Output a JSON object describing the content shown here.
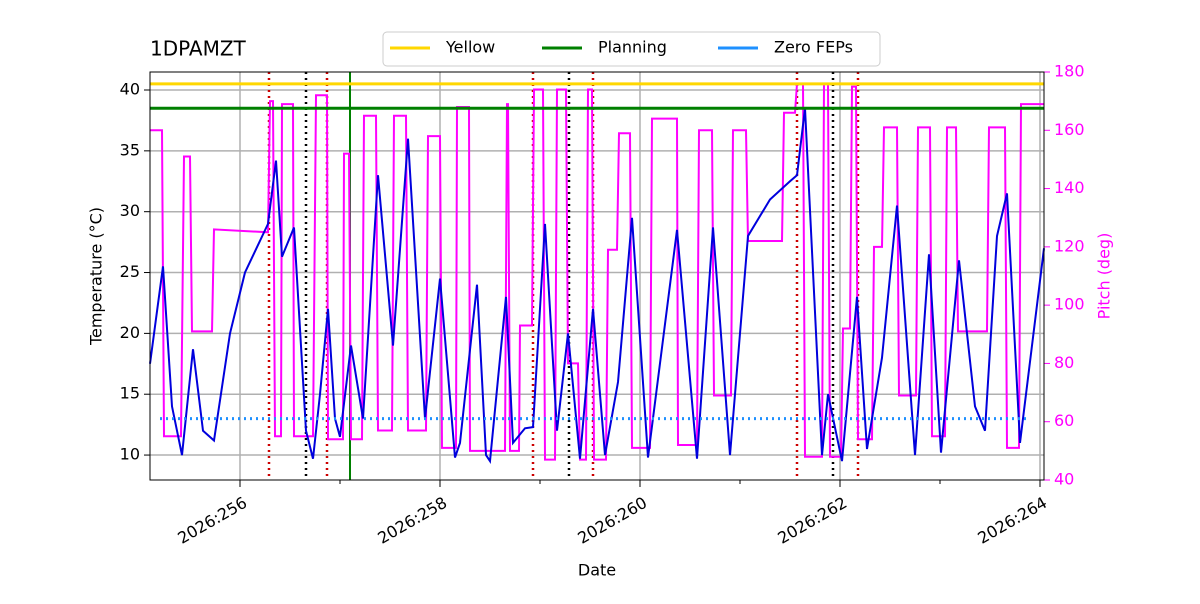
{
  "chart_data": {
    "type": "line",
    "title": "1DPAMZT",
    "xlabel": "Date",
    "ylabel": "Temperature (°C)",
    "y2label": "Pitch (deg)",
    "xlim": [
      255.1,
      264.04
    ],
    "xticks": [
      {
        "value": 256,
        "label": "2026:256"
      },
      {
        "value": 258,
        "label": "2026:258"
      },
      {
        "value": 260,
        "label": "2026:260"
      },
      {
        "value": 262,
        "label": "2026:262"
      },
      {
        "value": 264,
        "label": "2026:264"
      }
    ],
    "xminor": [
      257,
      259,
      261,
      263
    ],
    "ylim": [
      7.95,
      41.48
    ],
    "yticks": [
      10,
      15,
      20,
      25,
      30,
      35,
      40
    ],
    "y2lim": [
      40,
      180
    ],
    "y2ticks": [
      40,
      60,
      80,
      100,
      120,
      140,
      160,
      180
    ],
    "y2color": "#ff00ff",
    "grid": true,
    "legend": "top",
    "temperature": {
      "color": "#0000dd",
      "x": [
        255.1,
        255.23,
        255.32,
        255.42,
        255.53,
        255.63,
        255.74,
        255.9,
        256.05,
        256.28,
        256.36,
        256.42,
        256.54,
        256.66,
        256.73,
        256.8,
        256.88,
        256.95,
        257.0,
        257.11,
        257.23,
        257.38,
        257.53,
        257.68,
        257.85,
        258.0,
        258.15,
        258.2,
        258.37,
        258.46,
        258.5,
        258.66,
        258.73,
        258.85,
        258.93,
        259.05,
        259.17,
        259.28,
        259.4,
        259.53,
        259.65,
        259.78,
        259.92,
        260.08,
        260.37,
        260.57,
        260.73,
        260.9,
        261.08,
        261.3,
        261.5,
        261.57,
        261.65,
        261.82,
        261.88,
        262.02,
        262.17,
        262.27,
        262.42,
        262.57,
        262.75,
        262.89,
        263.01,
        263.19,
        263.35,
        263.45,
        263.57,
        263.67,
        263.8,
        264.04
      ],
      "values": [
        17.5,
        25.5,
        14,
        10,
        18.7,
        12,
        11.2,
        20,
        25,
        29,
        34.2,
        26.3,
        28.7,
        12,
        9.7,
        15,
        22,
        13,
        11.5,
        19,
        13,
        33,
        19,
        36,
        13,
        24.5,
        9.8,
        11,
        24,
        10,
        9.5,
        23,
        11,
        12.2,
        12.3,
        29,
        12,
        20,
        9.7,
        22,
        10,
        16,
        29.5,
        9.8,
        28.5,
        9.7,
        28.7,
        10,
        28,
        31,
        32.5,
        33,
        38.5,
        10,
        15,
        9.5,
        23,
        10.5,
        18,
        30.5,
        10,
        26.5,
        10.2,
        26,
        14,
        12,
        28,
        31.5,
        11,
        27
      ]
    },
    "pitch": {
      "color": "#ff00ff",
      "axis": "y2",
      "x": [
        255.1,
        255.22,
        255.24,
        255.41,
        255.44,
        255.5,
        255.52,
        255.72,
        255.74,
        256.28,
        256.3,
        256.33,
        256.35,
        256.41,
        256.42,
        256.53,
        256.54,
        256.73,
        256.76,
        256.87,
        256.88,
        257.03,
        257.04,
        257.09,
        257.11,
        257.22,
        257.24,
        257.36,
        257.38,
        257.52,
        257.54,
        257.66,
        257.68,
        257.86,
        257.88,
        258.0,
        258.02,
        258.16,
        258.17,
        258.29,
        258.3,
        258.65,
        258.67,
        258.68,
        258.7,
        258.79,
        258.8,
        258.92,
        258.94,
        259.03,
        259.05,
        259.15,
        259.17,
        259.26,
        259.28,
        259.38,
        259.4,
        259.46,
        259.48,
        259.52,
        259.54,
        259.66,
        259.68,
        259.77,
        259.79,
        259.9,
        259.92,
        260.1,
        260.12,
        260.37,
        260.38,
        260.57,
        260.59,
        260.72,
        260.74,
        260.91,
        260.93,
        261.06,
        261.08,
        261.42,
        261.44,
        261.55,
        261.57,
        261.63,
        261.65,
        261.82,
        261.84,
        261.88,
        261.9,
        262.01,
        262.03,
        262.1,
        262.12,
        262.16,
        262.18,
        262.32,
        262.34,
        262.42,
        262.44,
        262.57,
        262.59,
        262.76,
        262.78,
        262.9,
        262.92,
        263.05,
        263.07,
        263.16,
        263.18,
        263.47,
        263.49,
        263.65,
        263.67,
        263.79,
        263.81,
        264.04
      ],
      "values": [
        160,
        160,
        55,
        55,
        151,
        151,
        91,
        91,
        126,
        125,
        170,
        170,
        55,
        55,
        169,
        169,
        55,
        55,
        172,
        172,
        54,
        54,
        152,
        152,
        54,
        54,
        165,
        165,
        57,
        57,
        165,
        165,
        57,
        57,
        158,
        158,
        51,
        51,
        168,
        168,
        50,
        50,
        169,
        169,
        50,
        50,
        93,
        93,
        174,
        174,
        47,
        47,
        174,
        174,
        80,
        80,
        47,
        47,
        174,
        174,
        47,
        47,
        119,
        119,
        159,
        159,
        51,
        51,
        164,
        164,
        52,
        52,
        160,
        160,
        69,
        69,
        160,
        160,
        122,
        122,
        166,
        166,
        176,
        176,
        48,
        48,
        176,
        176,
        48,
        48,
        92,
        92,
        175,
        175,
        54,
        54,
        120,
        120,
        161,
        161,
        69,
        69,
        161,
        161,
        55,
        55,
        161,
        161,
        91,
        91,
        161,
        161,
        51,
        51,
        169,
        169
      ]
    },
    "series": [
      {
        "name": "Yellow",
        "color": "#ffd700",
        "value": 40.5
      },
      {
        "name": "Planning",
        "color": "#008000",
        "value": 38.5
      },
      {
        "name": "Zero FEPs",
        "color": "#1e90ff",
        "style": "dotted",
        "x": [
          255.2,
          263.9
        ],
        "values": [
          13,
          13
        ]
      }
    ],
    "events": [
      {
        "color": "#cc0000",
        "style": "dotted",
        "x": [
          256.29,
          256.87,
          258.93,
          259.53,
          261.57,
          262.18
        ]
      },
      {
        "color": "#000000",
        "style": "dotted",
        "x": [
          256.66,
          259.29,
          261.93
        ]
      },
      {
        "color": "#008000",
        "style": "solid",
        "x": [
          257.1
        ]
      }
    ]
  }
}
